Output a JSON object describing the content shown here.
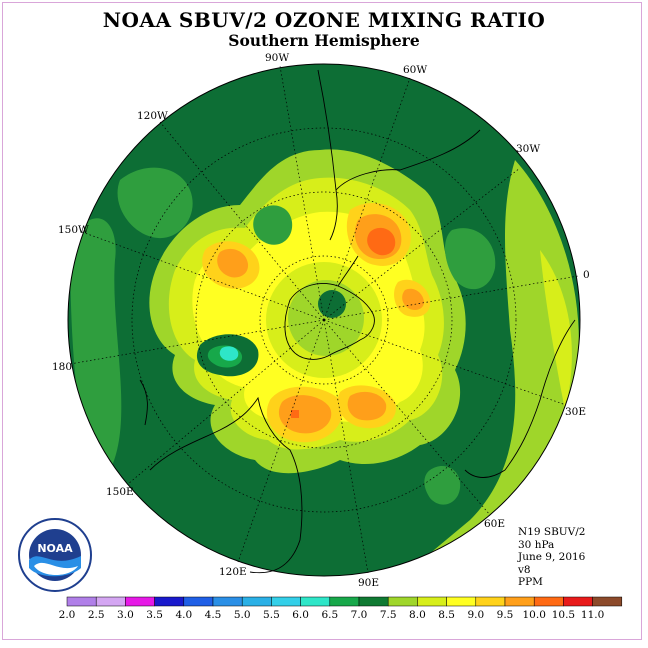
{
  "title": "NOAA SBUV/2 OZONE MIXING RATIO",
  "subtitle": "Southern Hemisphere",
  "longitude_labels": [
    "90W",
    "60W",
    "30W",
    "0",
    "30E",
    "60E",
    "90E",
    "120E",
    "150E",
    "180",
    "150W",
    "120W"
  ],
  "info": {
    "satellite": "N19 SBUV/2",
    "level": "30 hPa",
    "date": "June 9, 2016",
    "version": "v8",
    "units": "PPM"
  },
  "colorbar": {
    "labels": [
      "2.0",
      "2.5",
      "3.0",
      "3.5",
      "4.0",
      "4.5",
      "5.0",
      "5.5",
      "6.0",
      "6.5",
      "7.0",
      "7.5",
      "8.0",
      "8.5",
      "9.0",
      "9.5",
      "10.0",
      "10.5",
      "11.0"
    ],
    "colors": [
      "#b07fe8",
      "#d4a6f2",
      "#e619e6",
      "#1919cc",
      "#1f5fe6",
      "#2a8fe6",
      "#2ab0e6",
      "#33cfe8",
      "#2ee6c8",
      "#17a84a",
      "#0f7a32",
      "#9fd62a",
      "#d7ee1a",
      "#ffff22",
      "#ffd21a",
      "#ff9f1a",
      "#ff6a14",
      "#e81a1a",
      "#8c4a2a"
    ]
  },
  "logo_text": "NOAA",
  "colors": {
    "dark_green": "#0d6e35",
    "mid_green": "#2f9e3e",
    "lime": "#9fd62a",
    "yellow_green": "#d7ee1a",
    "yellow": "#ffff22",
    "orange": "#ffa515",
    "red_orange": "#ff6a14",
    "cyan": "#2ee6c8"
  }
}
